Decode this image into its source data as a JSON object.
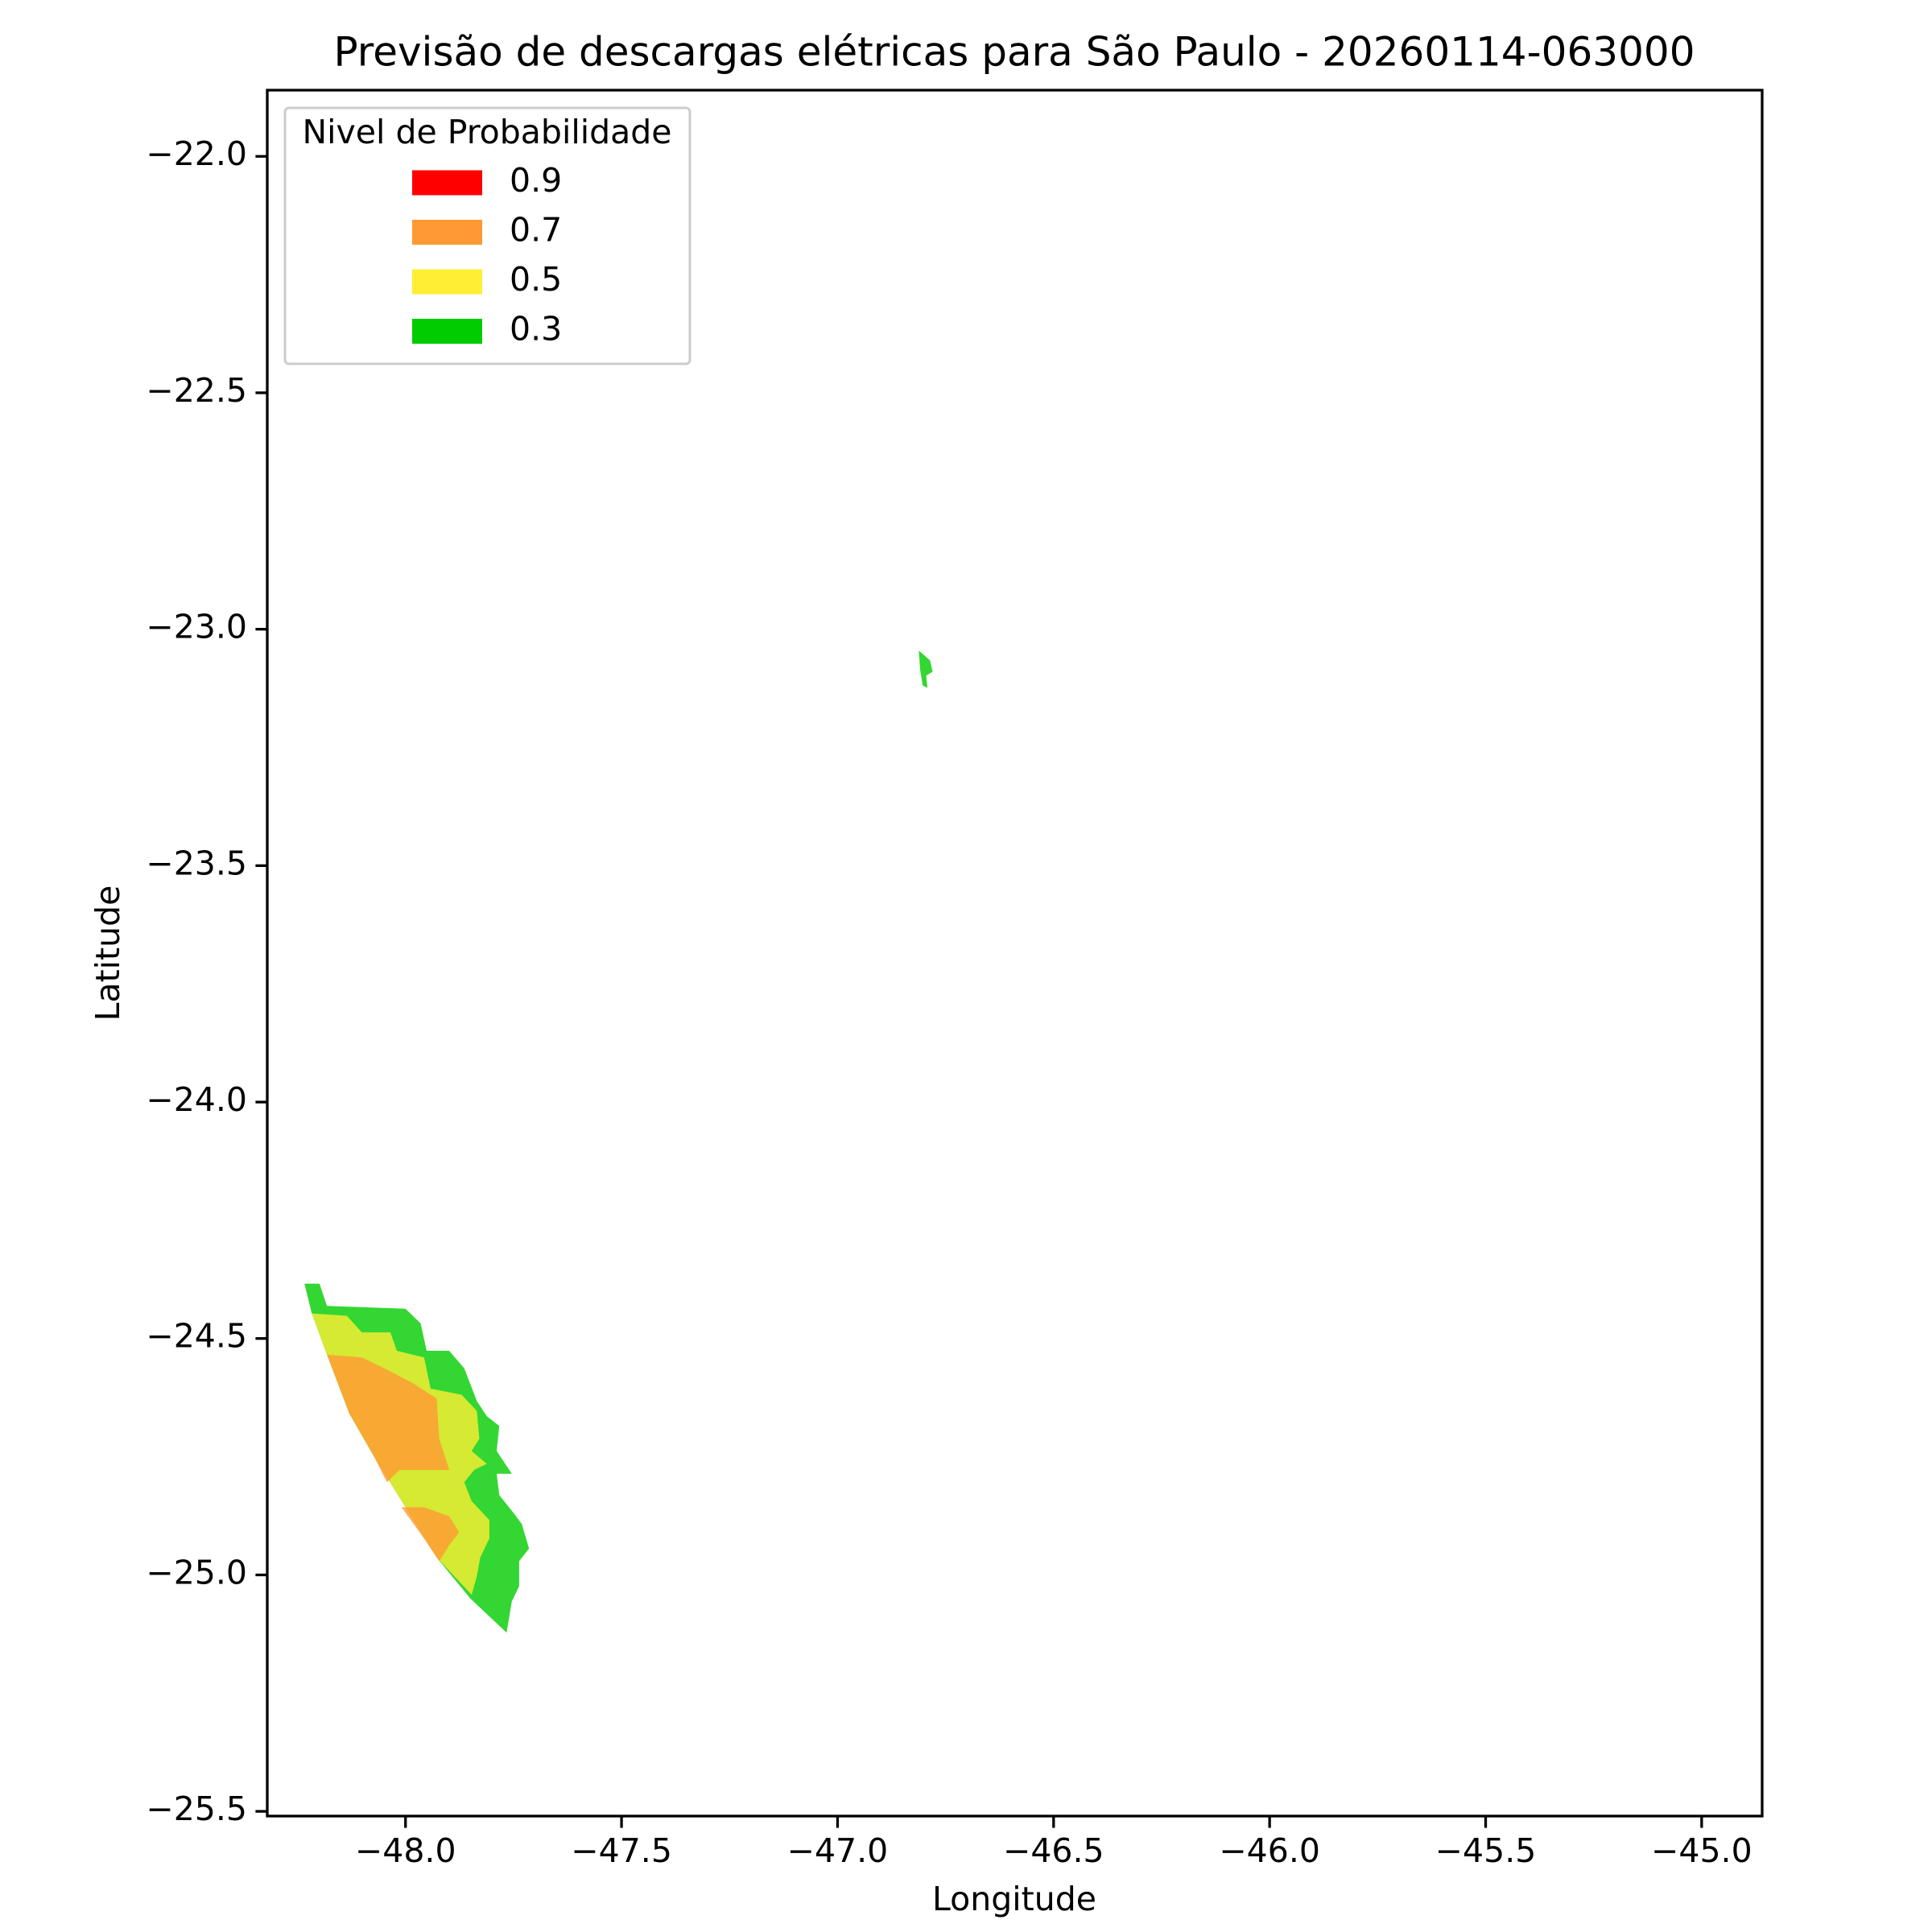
{
  "chart_data": {
    "type": "contour-map",
    "title": "Previsão de descargas elétricas para São Paulo - 20260114-063000",
    "xlabel": "Longitude",
    "ylabel": "Latitude",
    "xlim": [
      -48.32,
      -44.86
    ],
    "ylim": [
      -25.51,
      -21.86
    ],
    "xticks": [
      {
        "value": -48.0,
        "label": "−48.0"
      },
      {
        "value": -47.5,
        "label": "−47.5"
      },
      {
        "value": -47.0,
        "label": "−47.0"
      },
      {
        "value": -46.5,
        "label": "−46.5"
      },
      {
        "value": -46.0,
        "label": "−46.0"
      },
      {
        "value": -45.5,
        "label": "−45.5"
      },
      {
        "value": -45.0,
        "label": "−45.0"
      }
    ],
    "yticks": [
      {
        "value": -22.0,
        "label": "−22.0"
      },
      {
        "value": -22.5,
        "label": "−22.5"
      },
      {
        "value": -23.0,
        "label": "−23.0"
      },
      {
        "value": -23.5,
        "label": "−23.5"
      },
      {
        "value": -24.0,
        "label": "−24.0"
      },
      {
        "value": -24.5,
        "label": "−24.5"
      },
      {
        "value": -25.0,
        "label": "−25.0"
      },
      {
        "value": -25.5,
        "label": "−25.5"
      }
    ],
    "legend": {
      "title": "Nivel de Probabilidade",
      "loc": "upper left"
    },
    "fill_opacity": 0.8,
    "series": [
      {
        "name": "0.9",
        "color": "#ff0000",
        "regions": []
      },
      {
        "name": "0.7",
        "color": "#ff9933",
        "regions": [
          {
            "lon": [
              -48.182,
              -48.101,
              -48.043,
              -47.986,
              -47.928,
              -47.922,
              -47.899,
              -48.014,
              -48.043,
              -48.072,
              -48.13
            ],
            "lat": [
              -24.534,
              -24.54,
              -24.566,
              -24.593,
              -24.627,
              -24.712,
              -24.778,
              -24.778,
              -24.804,
              -24.751,
              -24.659
            ]
          },
          {
            "lon": [
              -48.009,
              -47.957,
              -47.899,
              -47.876,
              -47.899,
              -47.922,
              -47.957
            ],
            "lat": [
              -24.857,
              -24.857,
              -24.876,
              -24.91,
              -24.937,
              -24.971,
              -24.923
            ]
          }
        ]
      },
      {
        "name": "0.5",
        "color": "#ffee33",
        "regions": [
          {
            "lon": [
              -48.217,
              -48.136,
              -48.101,
              -48.035,
              -48.02,
              -47.957,
              -47.942,
              -47.87,
              -47.835,
              -47.829,
              -47.847,
              -47.812,
              -47.841,
              -47.864,
              -47.847,
              -47.806,
              -47.806,
              -47.827,
              -47.835,
              -47.847,
              -47.928,
              -48.0,
              -48.072,
              -48.13,
              -48.182
            ],
            "lat": [
              -24.447,
              -24.452,
              -24.487,
              -24.487,
              -24.526,
              -24.54,
              -24.606,
              -24.619,
              -24.653,
              -24.712,
              -24.738,
              -24.765,
              -24.778,
              -24.804,
              -24.844,
              -24.884,
              -24.923,
              -24.963,
              -25.003,
              -25.042,
              -24.963,
              -24.857,
              -24.751,
              -24.659,
              -24.534
            ]
          }
        ]
      },
      {
        "name": "0.3",
        "color": "#00cc00",
        "regions": [
          {
            "lon": [
              -48.234,
              -48.199,
              -48.182,
              -48.0,
              -47.965,
              -47.951,
              -47.899,
              -47.864,
              -47.835,
              -47.812,
              -47.783,
              -47.789,
              -47.754,
              -47.789,
              -47.783,
              -47.749,
              -47.731,
              -47.714,
              -47.737,
              -47.737,
              -47.754,
              -47.766,
              -47.85,
              -47.928,
              -48.0,
              -48.072,
              -48.13,
              -48.182,
              -48.217
            ],
            "lat": [
              -24.384,
              -24.384,
              -24.431,
              -24.437,
              -24.468,
              -24.526,
              -24.526,
              -24.563,
              -24.632,
              -24.664,
              -24.685,
              -24.738,
              -24.786,
              -24.786,
              -24.831,
              -24.87,
              -24.892,
              -24.944,
              -24.971,
              -25.024,
              -25.056,
              -25.122,
              -25.05,
              -24.963,
              -24.857,
              -24.751,
              -24.659,
              -24.534,
              -24.447
            ]
          },
          {
            "lon": [
              -46.812,
              -46.786,
              -46.78,
              -46.795,
              -46.792,
              -46.803,
              -46.809
            ],
            "lat": [
              -23.045,
              -23.066,
              -23.09,
              -23.098,
              -23.124,
              -23.119,
              -23.085
            ]
          }
        ]
      }
    ]
  }
}
